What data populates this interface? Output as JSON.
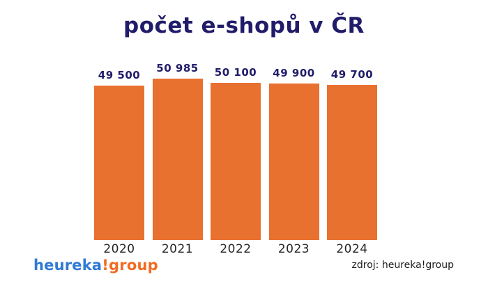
{
  "title": "počet e-shopů v ČR",
  "chart_data": {
    "type": "bar",
    "title": "počet e-shopů v ČR",
    "categories": [
      "2020",
      "2021",
      "2022",
      "2023",
      "2024"
    ],
    "values": [
      49500,
      50985,
      50100,
      49900,
      49700
    ],
    "value_labels": [
      "49 500",
      "50 985",
      "50 100",
      "49 900",
      "49 700"
    ],
    "xlabel": "",
    "ylabel": "",
    "ylim": [
      16500,
      51000
    ],
    "grid": false,
    "legend": false,
    "bar_color": "#e87130",
    "value_label_color": "#211c6a",
    "tick_label_color": "#262626"
  },
  "footer": {
    "logo": {
      "part_blue": "heureka",
      "part_orange": "!group",
      "blue_color": "#2f7ad3",
      "orange_color": "#f26b21"
    },
    "source": "zdroj: heureka!group"
  },
  "colors": {
    "background": "#ffffff",
    "title": "#211c6a"
  }
}
